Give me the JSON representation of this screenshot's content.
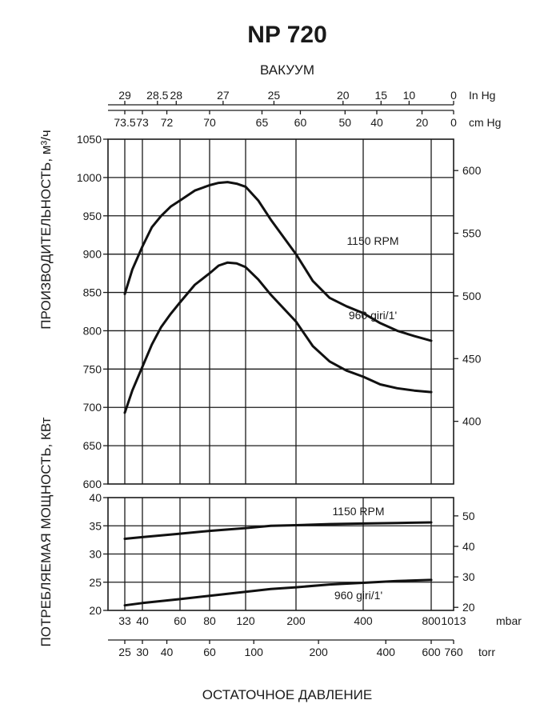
{
  "chart_data": {
    "type": "line",
    "title": "NP 720",
    "top_axis_title": "ВАКУУМ",
    "vacuum_in_hg": {
      "unit": "In Hg",
      "ticks": [
        {
          "label": "29",
          "mbar": 33
        },
        {
          "label": "28.5",
          "mbar": 48
        },
        {
          "label": "28",
          "mbar": 58
        },
        {
          "label": "27",
          "mbar": 95
        },
        {
          "label": "25",
          "mbar": 165
        },
        {
          "label": "20",
          "mbar": 340
        },
        {
          "label": "15",
          "mbar": 505
        },
        {
          "label": "10",
          "mbar": 670
        },
        {
          "label": "0",
          "mbar": 1013
        }
      ]
    },
    "vacuum_cm_hg": {
      "unit": "cm Hg",
      "ticks": [
        {
          "label": "73.5",
          "mbar": 33
        },
        {
          "label": "73",
          "mbar": 40
        },
        {
          "label": "72",
          "mbar": 53
        },
        {
          "label": "70",
          "mbar": 80
        },
        {
          "label": "65",
          "mbar": 146
        },
        {
          "label": "60",
          "mbar": 213
        },
        {
          "label": "50",
          "mbar": 346
        },
        {
          "label": "40",
          "mbar": 480
        },
        {
          "label": "20",
          "mbar": 746
        },
        {
          "label": "0",
          "mbar": 1013
        }
      ]
    },
    "x_mbar": {
      "unit": "mbar",
      "ticks": [
        {
          "label": "33",
          "value": 33
        },
        {
          "label": "40",
          "value": 40
        },
        {
          "label": "60",
          "value": 60
        },
        {
          "label": "80",
          "value": 80
        },
        {
          "label": "120",
          "value": 120
        },
        {
          "label": "200",
          "value": 200
        },
        {
          "label": "400",
          "value": 400
        },
        {
          "label": "800",
          "value": 800
        },
        {
          "label": "1013",
          "value": 1013
        }
      ]
    },
    "x_torr": {
      "unit": "torr",
      "ticks": [
        {
          "label": "25",
          "mbar": 33
        },
        {
          "label": "30",
          "mbar": 40
        },
        {
          "label": "40",
          "mbar": 53
        },
        {
          "label": "60",
          "mbar": 80
        },
        {
          "label": "100",
          "mbar": 133
        },
        {
          "label": "200",
          "mbar": 267
        },
        {
          "label": "400",
          "mbar": 533
        },
        {
          "label": "600",
          "mbar": 800
        },
        {
          "label": "760",
          "mbar": 1013
        }
      ]
    },
    "xlabel": "ОСТАТОЧНОЕ ДАВЛЕНИЕ",
    "x_grid": [
      33,
      40,
      60,
      80,
      120,
      200,
      400,
      800
    ],
    "capacity": {
      "ylabel": "ПРОИЗВОДИТЕЛЬНОСТЬ, м³/ч",
      "ylim": [
        600,
        1050
      ],
      "ticks": [
        "600",
        "650",
        "700",
        "750",
        "800",
        "850",
        "900",
        "950",
        "1000",
        "1050"
      ],
      "right_ticks": [
        "400",
        "450",
        "500",
        "550",
        "600"
      ],
      "right_scale": {
        "value_at_600": 350,
        "value_at_1050": 625
      },
      "series": [
        {
          "name": "1150 RPM",
          "x": [
            33,
            36,
            40,
            45,
            50,
            55,
            60,
            70,
            80,
            90,
            100,
            110,
            120,
            140,
            160,
            200,
            250,
            300,
            350,
            400,
            500,
            600,
            700,
            800
          ],
          "y": [
            848,
            880,
            910,
            935,
            950,
            962,
            970,
            983,
            990,
            993,
            994,
            992,
            988,
            970,
            945,
            900,
            865,
            843,
            832,
            823,
            810,
            800,
            793,
            787
          ]
        },
        {
          "name": "960 giri/1'",
          "x": [
            33,
            36,
            40,
            45,
            50,
            55,
            60,
            70,
            80,
            90,
            100,
            110,
            120,
            140,
            160,
            200,
            250,
            300,
            350,
            400,
            500,
            600,
            700,
            800
          ],
          "y": [
            693,
            722,
            753,
            782,
            805,
            822,
            837,
            860,
            875,
            885,
            889,
            888,
            883,
            867,
            847,
            812,
            780,
            760,
            748,
            740,
            730,
            725,
            722,
            720
          ]
        }
      ]
    },
    "power": {
      "ylabel": "ПОТРЕБЛЯЕМАЯ МОЩНОСТЬ, КВт",
      "ylim": [
        20,
        40
      ],
      "ticks": [
        "20",
        "25",
        "30",
        "35",
        "40"
      ],
      "right_ticks": [
        "20",
        "30",
        "40",
        "50"
      ],
      "right_scale": {
        "value_at_20": 19,
        "value_at_40": 56
      },
      "series": [
        {
          "name": "1150 RPM",
          "x": [
            33,
            40,
            60,
            80,
            120,
            160,
            200,
            300,
            400,
            600,
            800
          ],
          "y": [
            32.7,
            33.0,
            33.6,
            34.1,
            34.6,
            35.0,
            35.1,
            35.3,
            35.4,
            35.5,
            35.6
          ]
        },
        {
          "name": "960 giri/1'",
          "x": [
            33,
            40,
            60,
            80,
            120,
            160,
            200,
            300,
            400,
            600,
            800
          ],
          "y": [
            20.9,
            21.3,
            22.0,
            22.6,
            23.3,
            23.8,
            24.1,
            24.6,
            24.9,
            25.2,
            25.4
          ]
        }
      ]
    }
  }
}
